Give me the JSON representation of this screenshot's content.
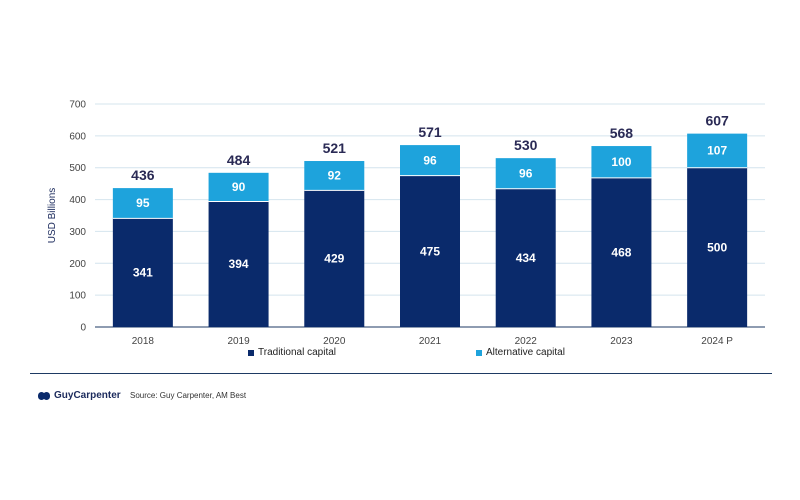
{
  "chart_data": {
    "type": "bar",
    "stacked": true,
    "title": "",
    "xlabel": "",
    "ylabel": "USD Billions",
    "ylim": [
      0,
      700
    ],
    "yticks": [
      0,
      100,
      200,
      300,
      400,
      500,
      600,
      700
    ],
    "categories": [
      "2018",
      "2019",
      "2020",
      "2021",
      "2022",
      "2023",
      "2024 P"
    ],
    "series": [
      {
        "name": "Traditional capital",
        "color": "#0a2a6b",
        "values": [
          341,
          394,
          429,
          475,
          434,
          468,
          500
        ]
      },
      {
        "name": "Alternative capital",
        "color": "#1ea3dc",
        "values": [
          95,
          90,
          92,
          96,
          96,
          100,
          107
        ]
      }
    ],
    "totals": [
      436,
      484,
      521,
      571,
      530,
      568,
      607
    ],
    "legend_position": "bottom"
  },
  "footer": {
    "brand": "GuyCarpenter",
    "source": "Source: Guy Carpenter, AM Best"
  }
}
